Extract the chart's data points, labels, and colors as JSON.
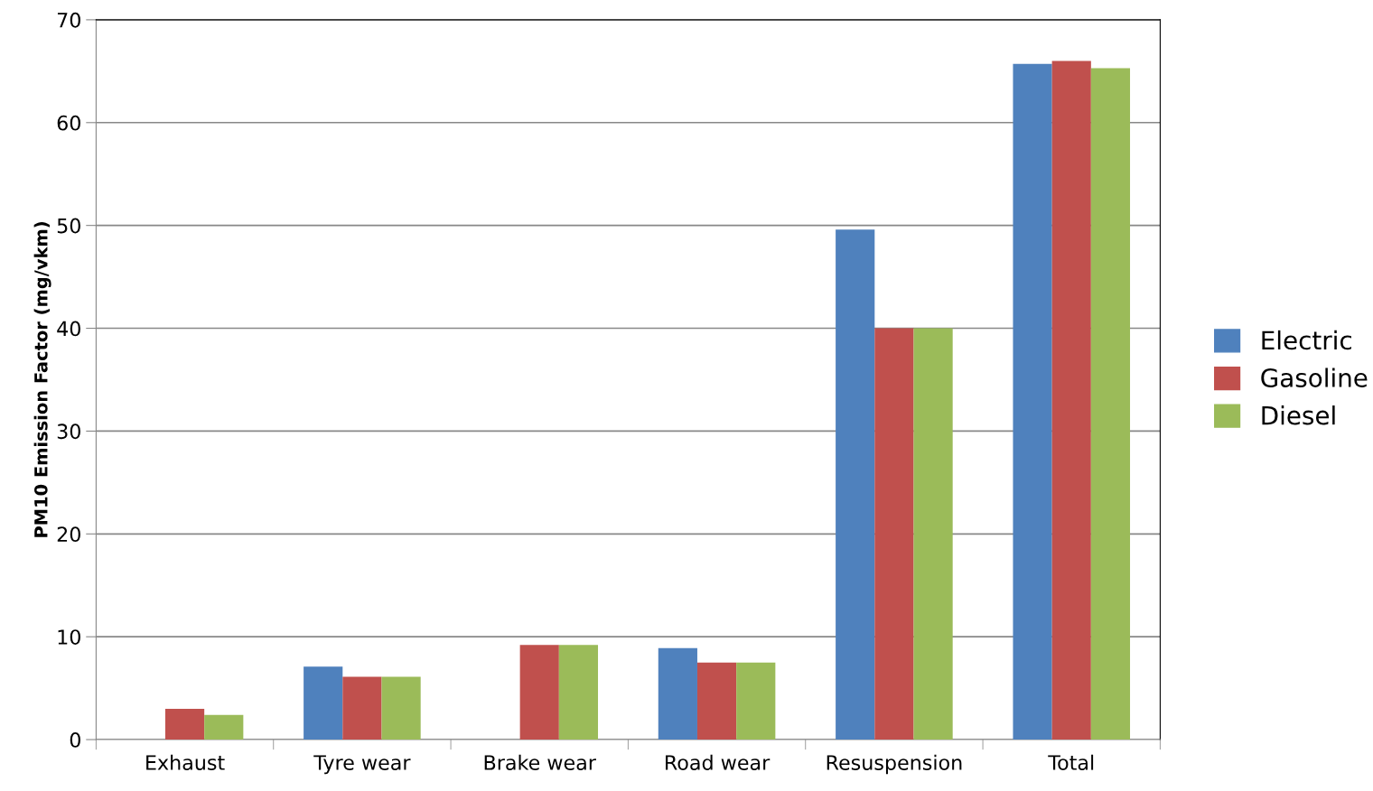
{
  "chart_data": {
    "type": "bar",
    "ylabel": "PM10 Emission Factor (mg/vkm)",
    "categories": [
      "Exhaust",
      "Tyre wear",
      "Brake wear",
      "Road wear",
      "Resuspension",
      "Total"
    ],
    "series": [
      {
        "name": "Electric",
        "color": "#4f81bd",
        "values": [
          0,
          7.1,
          0,
          8.9,
          49.6,
          65.7
        ]
      },
      {
        "name": "Gasoline",
        "color": "#c0504d",
        "values": [
          3.0,
          6.1,
          9.2,
          7.5,
          40.0,
          66.0
        ]
      },
      {
        "name": "Diesel",
        "color": "#9bbb59",
        "values": [
          2.4,
          6.1,
          9.2,
          7.5,
          40.0,
          65.3
        ]
      }
    ],
    "ylim": [
      0,
      70
    ],
    "yticks": [
      0,
      10,
      20,
      30,
      40,
      50,
      60,
      70
    ],
    "grid": "y",
    "legend": "right"
  }
}
